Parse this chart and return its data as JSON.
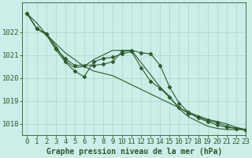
{
  "title": "Graphe pression niveau de la mer (hPa)",
  "bg_color": "#cceee8",
  "grid_color": "#aaddcc",
  "line_color": "#2d5a2d",
  "xlim": [
    -0.5,
    23
  ],
  "ylim": [
    1017.5,
    1023.3
  ],
  "yticks": [
    1018,
    1019,
    1020,
    1021,
    1022
  ],
  "xticks": [
    0,
    1,
    2,
    3,
    4,
    5,
    6,
    7,
    8,
    9,
    10,
    11,
    12,
    13,
    14,
    15,
    16,
    17,
    18,
    19,
    20,
    21,
    22,
    23
  ],
  "series": [
    {
      "x": [
        0,
        1,
        2,
        3,
        4,
        5,
        6,
        7,
        8,
        9,
        10,
        11,
        12,
        13,
        14,
        15,
        16,
        17,
        18,
        19,
        20,
        21,
        22,
        23
      ],
      "y": [
        1022.8,
        1022.4,
        1021.9,
        1021.5,
        1021.1,
        1020.8,
        1020.5,
        1020.3,
        1020.2,
        1020.1,
        1019.9,
        1019.7,
        1019.5,
        1019.3,
        1019.1,
        1018.9,
        1018.7,
        1018.5,
        1018.35,
        1018.2,
        1018.1,
        1018.0,
        1017.85,
        1017.75
      ],
      "marker": false,
      "lw": 1.0
    },
    {
      "x": [
        0,
        1,
        2,
        3,
        4,
        5,
        6,
        7,
        8,
        9,
        10,
        11,
        12,
        13,
        14,
        15,
        16,
        17,
        18,
        19,
        20,
        21,
        22,
        23
      ],
      "y": [
        1022.8,
        1022.15,
        1021.9,
        1021.3,
        1020.85,
        1020.55,
        1020.55,
        1020.55,
        1020.6,
        1020.7,
        1021.15,
        1021.2,
        1021.1,
        1021.05,
        1020.55,
        1019.6,
        1018.9,
        1018.5,
        1018.25,
        1018.1,
        1017.95,
        1017.85,
        1017.8,
        1017.75
      ],
      "marker": true,
      "lw": 1.0
    },
    {
      "x": [
        0,
        1,
        2,
        3,
        4,
        5,
        6,
        7,
        8,
        9,
        10,
        11,
        14,
        15,
        16,
        17,
        18,
        19,
        20,
        21,
        22,
        23
      ],
      "y": [
        1022.8,
        1022.15,
        1021.95,
        1021.4,
        1020.75,
        1020.45,
        1020.5,
        1020.8,
        1021.0,
        1021.2,
        1021.2,
        1021.2,
        1019.6,
        1019.2,
        1018.65,
        1018.3,
        1018.1,
        1017.9,
        1017.8,
        1017.75,
        1017.75,
        1017.75
      ],
      "marker": false,
      "lw": 1.0
    },
    {
      "x": [
        0,
        1,
        2,
        3,
        4,
        5,
        6,
        7,
        8,
        9,
        10,
        11,
        12,
        13,
        14,
        15,
        16,
        17,
        18,
        19,
        20,
        21,
        22,
        23
      ],
      "y": [
        1022.8,
        1022.15,
        1021.9,
        1021.25,
        1020.7,
        1020.3,
        1020.05,
        1020.7,
        1020.85,
        1020.9,
        1021.05,
        1021.15,
        1020.45,
        1019.85,
        1019.55,
        1019.15,
        1018.7,
        1018.45,
        1018.3,
        1018.15,
        1018.05,
        1017.9,
        1017.8,
        1017.72
      ],
      "marker": true,
      "lw": 1.0
    }
  ],
  "font_size": 6.5,
  "title_fontsize": 7.0
}
